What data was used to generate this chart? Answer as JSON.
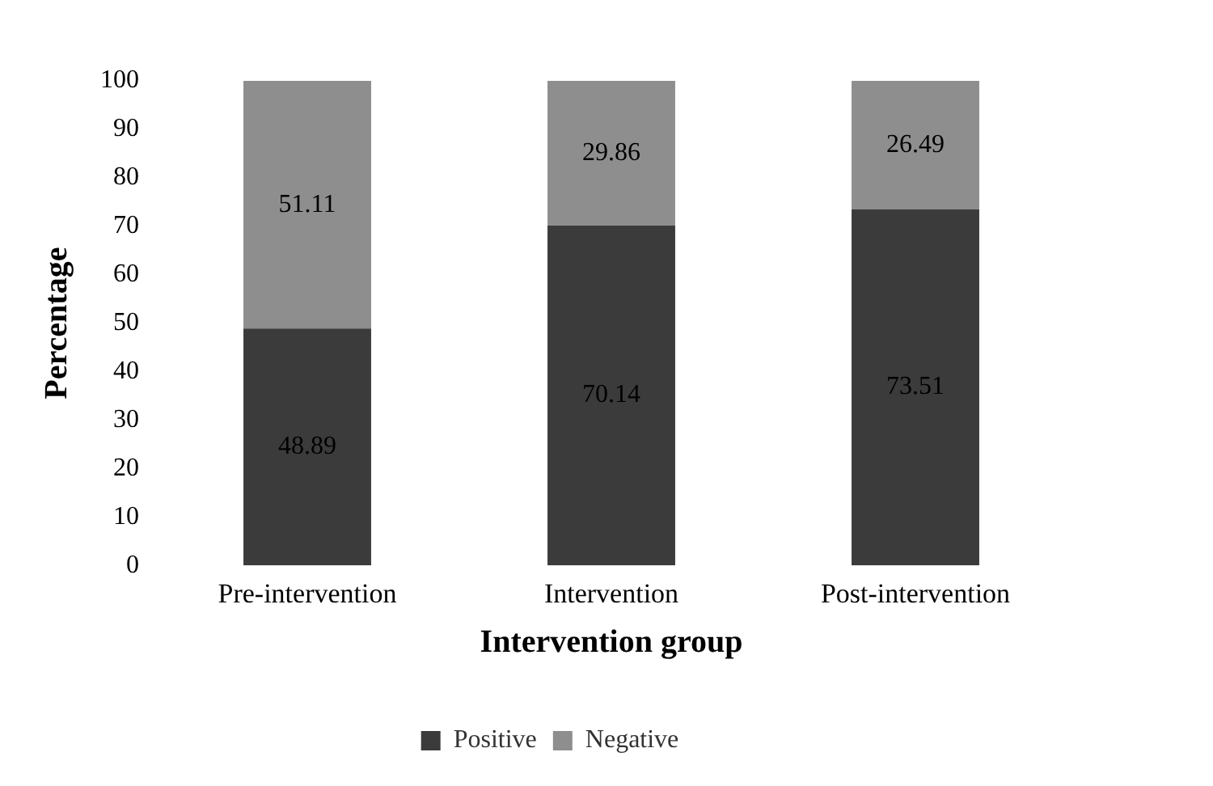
{
  "chart_data": {
    "type": "bar",
    "stacked": true,
    "xlabel": "Intervention group",
    "ylabel": "Percentage",
    "categories": [
      "Pre-intervention",
      "Intervention",
      "Post-intervention"
    ],
    "series": [
      {
        "name": "Positive",
        "color": "#3b3b3b",
        "values": [
          48.89,
          70.14,
          73.51
        ]
      },
      {
        "name": "Negative",
        "color": "#8e8e8e",
        "values": [
          51.11,
          29.86,
          26.49
        ]
      }
    ],
    "ylim": [
      0,
      100
    ],
    "yticks": [
      0,
      10,
      20,
      30,
      40,
      50,
      60,
      70,
      80,
      90,
      100
    ],
    "grid": false,
    "legend": "bottom",
    "data_labels": true
  }
}
